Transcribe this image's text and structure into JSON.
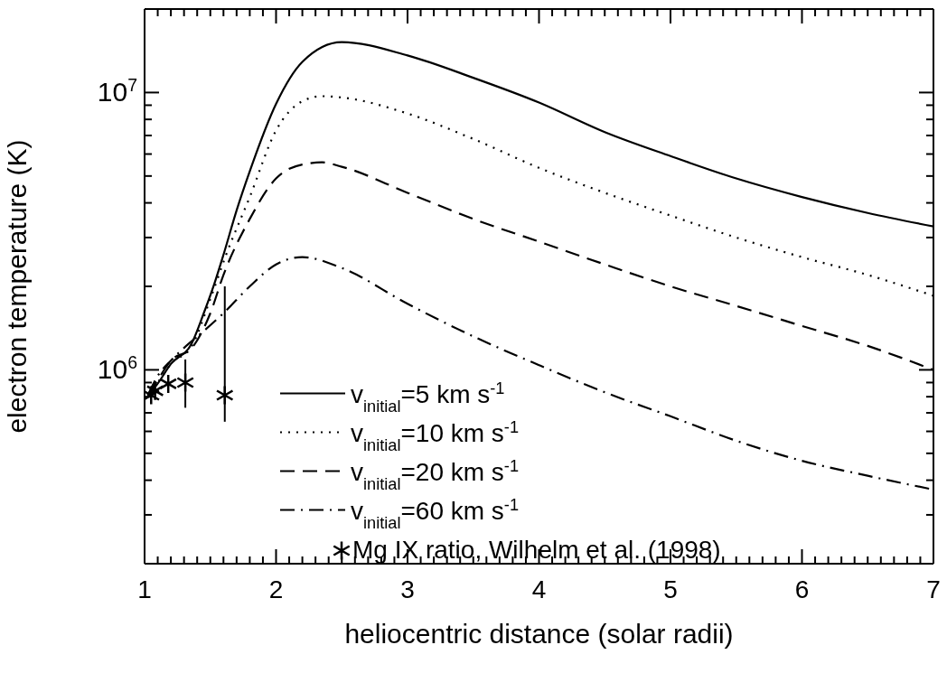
{
  "chart_data": {
    "type": "line",
    "xlabel": "heliocentric distance (solar radii)",
    "ylabel": "electron temperature (K)",
    "xlim": [
      1,
      7
    ],
    "xticks": [
      1,
      {
        "value": 1.1,
        "label": null
      },
      {
        "value": 1.2,
        "label": null
      },
      {
        "value": 1.3,
        "label": null
      },
      {
        "value": 1.4,
        "label": null
      },
      {
        "value": 1.5,
        "label": null
      },
      {
        "value": 1.6,
        "label": null
      },
      {
        "value": 1.7,
        "label": null
      },
      {
        "value": 1.8,
        "label": null
      },
      {
        "value": 1.9,
        "label": null
      },
      2,
      {
        "value": 2.1,
        "label": null
      },
      {
        "value": 2.2,
        "label": null
      },
      {
        "value": 2.3,
        "label": null
      },
      {
        "value": 2.4,
        "label": null
      },
      {
        "value": 2.5,
        "label": null
      },
      {
        "value": 2.6,
        "label": null
      },
      {
        "value": 2.7,
        "label": null
      },
      {
        "value": 2.8,
        "label": null
      },
      {
        "value": 2.9,
        "label": null
      },
      3,
      {
        "value": 3.1,
        "label": null
      },
      {
        "value": 3.2,
        "label": null
      },
      {
        "value": 3.3,
        "label": null
      },
      {
        "value": 3.4,
        "label": null
      },
      {
        "value": 3.5,
        "label": null
      },
      {
        "value": 3.6,
        "label": null
      },
      {
        "value": 3.7,
        "label": null
      },
      {
        "value": 3.8,
        "label": null
      },
      {
        "value": 3.9,
        "label": null
      },
      4,
      {
        "value": 4.1,
        "label": null
      },
      {
        "value": 4.2,
        "label": null
      },
      {
        "value": 4.3,
        "label": null
      },
      {
        "value": 4.4,
        "label": null
      },
      {
        "value": 4.5,
        "label": null
      },
      {
        "value": 4.6,
        "label": null
      },
      {
        "value": 4.7,
        "label": null
      },
      {
        "value": 4.8,
        "label": null
      },
      {
        "value": 4.9,
        "label": null
      },
      5,
      {
        "value": 5.1,
        "label": null
      },
      {
        "value": 5.2,
        "label": null
      },
      {
        "value": 5.3,
        "label": null
      },
      {
        "value": 5.4,
        "label": null
      },
      {
        "value": 5.5,
        "label": null
      },
      {
        "value": 5.6,
        "label": null
      },
      {
        "value": 5.7,
        "label": null
      },
      {
        "value": 5.8,
        "label": null
      },
      {
        "value": 5.9,
        "label": null
      },
      6,
      {
        "value": 6.1,
        "label": null
      },
      {
        "value": 6.2,
        "label": null
      },
      {
        "value": 6.3,
        "label": null
      },
      {
        "value": 6.4,
        "label": null
      },
      {
        "value": 6.5,
        "label": null
      },
      {
        "value": 6.6,
        "label": null
      },
      {
        "value": 6.7,
        "label": null
      },
      {
        "value": 6.8,
        "label": null
      },
      {
        "value": 6.9,
        "label": null
      },
      7
    ],
    "ylim": [
      200000,
      20000000
    ],
    "yticks": [
      {
        "value": 200000,
        "label": null
      },
      {
        "value": 300000,
        "label": null
      },
      {
        "value": 400000,
        "label": null
      },
      {
        "value": 500000,
        "label": null
      },
      {
        "value": 600000,
        "label": null
      },
      {
        "value": 700000,
        "label": null
      },
      {
        "value": 800000,
        "label": null
      },
      {
        "value": 900000,
        "label": null
      },
      {
        "value": 1000000,
        "label": "10$^{6}$"
      },
      {
        "value": 2000000,
        "label": null
      },
      {
        "value": 3000000,
        "label": null
      },
      {
        "value": 4000000,
        "label": null
      },
      {
        "value": 5000000,
        "label": null
      },
      {
        "value": 6000000,
        "label": null
      },
      {
        "value": 7000000,
        "label": null
      },
      {
        "value": 8000000,
        "label": null
      },
      {
        "value": 9000000,
        "label": null
      },
      {
        "value": 10000000,
        "label": "10$^{7}$"
      },
      {
        "value": 20000000,
        "label": null
      }
    ],
    "log": "y",
    "grid": false,
    "legend": "bottom",
    "series": [
      {
        "name": "v$_{initial}$=5 km s$^{-1}$",
        "color": "#000000",
        "line_style": "solid",
        "x": [
          1.03,
          1.09,
          1.2,
          1.36,
          1.45,
          1.53,
          1.6,
          1.7,
          1.8,
          2.0,
          2.2,
          2.5,
          3.0,
          3.5,
          4.0,
          4.5,
          5.0,
          5.5,
          6.0,
          6.5,
          7.0
        ],
        "values": [
          820000,
          880000,
          1050000,
          1250000,
          1600000,
          2040000,
          2600000,
          3760000,
          5200000,
          9100000,
          12900000,
          15200000,
          13600000,
          11300000,
          9200000,
          7200000,
          5900000,
          4900000,
          4200000,
          3680000,
          3290000
        ]
      },
      {
        "name": "v$_{initial}$=10 km s$^{-1}$",
        "color": "#000000",
        "line_style": "dotted",
        "x": [
          1.03,
          1.1,
          1.2,
          1.36,
          1.5,
          1.62,
          1.8,
          2.0,
          2.2,
          2.35,
          2.5,
          3.0,
          3.5,
          4.0,
          4.5,
          5.0,
          5.5,
          6.0,
          6.5,
          7.0
        ],
        "values": [
          820000,
          900000,
          1050000,
          1220000,
          1800000,
          2600000,
          4200000,
          7300000,
          9300000,
          9700000,
          9600000,
          8400000,
          6800000,
          5350000,
          4350000,
          3600000,
          3000000,
          2550000,
          2200000,
          1850000
        ]
      },
      {
        "name": "v$_{initial}$=20 km s$^{-1}$",
        "color": "#000000",
        "line_style": "dashed",
        "x": [
          1.03,
          1.1,
          1.2,
          1.36,
          1.5,
          1.6,
          1.8,
          2.0,
          2.2,
          2.35,
          2.5,
          3.0,
          3.5,
          4.0,
          4.5,
          5.0,
          5.5,
          6.0,
          6.5,
          7.0
        ],
        "values": [
          820000,
          920000,
          1080000,
          1200000,
          1600000,
          2200000,
          3500000,
          4900000,
          5500000,
          5600000,
          5400000,
          4350000,
          3500000,
          2900000,
          2400000,
          2000000,
          1700000,
          1440000,
          1220000,
          1000000
        ]
      },
      {
        "name": "v$_{initial}$=60 km s$^{-1}$",
        "color": "#000000",
        "line_style": "dashdot",
        "x": [
          1.03,
          1.1,
          1.2,
          1.3,
          1.45,
          1.6,
          1.8,
          2.0,
          2.2,
          2.5,
          3.0,
          3.5,
          4.0,
          4.5,
          5.0,
          5.5,
          6.0,
          6.5,
          7.0
        ],
        "values": [
          820000,
          950000,
          1080000,
          1200000,
          1380000,
          1600000,
          2000000,
          2400000,
          2550000,
          2330000,
          1730000,
          1320000,
          1040000,
          830000,
          680000,
          555000,
          470000,
          415000,
          370000
        ]
      },
      {
        "name": "Mg IX ratio, Wilhelm et al. (1998)",
        "type": "scatter",
        "color": "#000000",
        "marker": "cross",
        "x": [
          1.05,
          1.08,
          1.18,
          1.31,
          1.61
        ],
        "values": [
          810000,
          840000,
          890000,
          900000,
          810000
        ],
        "errors": [
          null,
          null,
          null,
          [
            730000,
            1090000
          ],
          [
            650000,
            2000000
          ]
        ]
      }
    ]
  }
}
